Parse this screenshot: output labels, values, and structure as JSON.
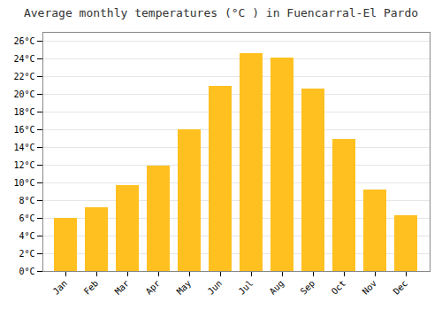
{
  "chart_data": {
    "type": "bar",
    "title": "Average monthly temperatures (°C ) in Fuencarral-El Pardo",
    "categories": [
      "Jan",
      "Feb",
      "Mar",
      "Apr",
      "May",
      "Jun",
      "Jul",
      "Aug",
      "Sep",
      "Oct",
      "Nov",
      "Dec"
    ],
    "values": [
      6.0,
      7.2,
      9.7,
      11.9,
      16.0,
      20.9,
      24.6,
      24.1,
      20.6,
      14.9,
      9.2,
      6.3
    ],
    "color": "#FFC020",
    "ylim": [
      0,
      27
    ],
    "yticks": [
      {
        "value": 0,
        "label": "0°C"
      },
      {
        "value": 2,
        "label": "2°C"
      },
      {
        "value": 4,
        "label": "4°C"
      },
      {
        "value": 6,
        "label": "6°C"
      },
      {
        "value": 8,
        "label": "8°C"
      },
      {
        "value": 10,
        "label": "10°C"
      },
      {
        "value": 12,
        "label": "12°C"
      },
      {
        "value": 14,
        "label": "14°C"
      },
      {
        "value": 16,
        "label": "16°C"
      },
      {
        "value": 18,
        "label": "18°C"
      },
      {
        "value": 20,
        "label": "20°C"
      },
      {
        "value": 22,
        "label": "22°C"
      },
      {
        "value": 24,
        "label": "24°C"
      },
      {
        "value": 26,
        "label": "26°C"
      }
    ],
    "grid": true
  }
}
